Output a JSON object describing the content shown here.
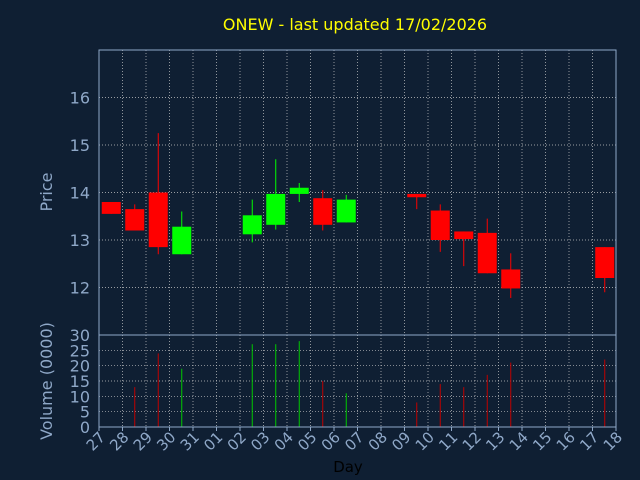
{
  "chart_data": {
    "type": "candlestick",
    "title": "ONEW - last updated 17/02/2026",
    "xlabel": "Day",
    "ylabel_price": "Price",
    "ylabel_volume": "Volume (0000)",
    "x_ticks": [
      "27",
      "28",
      "29",
      "30",
      "31",
      "01",
      "02",
      "03",
      "04",
      "05",
      "06",
      "07",
      "08",
      "09",
      "10",
      "11",
      "12",
      "13",
      "14",
      "15",
      "16",
      "17",
      "18"
    ],
    "price_yticks": [
      12,
      13,
      14,
      15,
      16
    ],
    "price_ylim": [
      11.0,
      17.0
    ],
    "volume_yticks": [
      0,
      5,
      10,
      15,
      20,
      25,
      30
    ],
    "volume_ylim": [
      0,
      30
    ],
    "grid": true,
    "colors": {
      "background": "#0f1f33",
      "title": "#ffff00",
      "axis_text": "#8fa8c8",
      "frame": "#8fa8c8",
      "grid": "#c8c8c8",
      "up": "#00ff00",
      "down": "#ff0000",
      "volume_up": "#00c800",
      "volume_down": "#c00000"
    },
    "candles": [
      {
        "day": "27",
        "open": 13.8,
        "high": 13.8,
        "low": 13.55,
        "close": 13.55,
        "volume": 0
      },
      {
        "day": "28",
        "open": 13.65,
        "high": 13.75,
        "low": 13.2,
        "close": 13.2,
        "volume": 13
      },
      {
        "day": "29",
        "open": 14.0,
        "high": 15.25,
        "low": 12.7,
        "close": 12.85,
        "volume": 24
      },
      {
        "day": "30",
        "open": 12.7,
        "high": 13.6,
        "low": 12.7,
        "close": 13.28,
        "volume": 19
      },
      {
        "day": "02",
        "open": 13.12,
        "high": 13.85,
        "low": 12.95,
        "close": 13.52,
        "volume": 27
      },
      {
        "day": "03",
        "open": 13.32,
        "high": 14.7,
        "low": 13.22,
        "close": 13.97,
        "volume": 27
      },
      {
        "day": "04",
        "open": 13.97,
        "high": 14.2,
        "low": 13.8,
        "close": 14.1,
        "volume": 28
      },
      {
        "day": "05",
        "open": 13.88,
        "high": 14.05,
        "low": 13.2,
        "close": 13.32,
        "volume": 15
      },
      {
        "day": "06",
        "open": 13.37,
        "high": 13.95,
        "low": 13.37,
        "close": 13.85,
        "volume": 11
      },
      {
        "day": "09",
        "open": 13.97,
        "high": 13.97,
        "low": 13.65,
        "close": 13.9,
        "volume": 8
      },
      {
        "day": "10",
        "open": 13.62,
        "high": 13.75,
        "low": 12.75,
        "close": 13.0,
        "volume": 14
      },
      {
        "day": "11",
        "open": 13.18,
        "high": 13.18,
        "low": 12.45,
        "close": 13.02,
        "volume": 13
      },
      {
        "day": "12",
        "open": 13.15,
        "high": 13.45,
        "low": 12.3,
        "close": 12.3,
        "volume": 17
      },
      {
        "day": "13",
        "open": 12.38,
        "high": 12.72,
        "low": 11.78,
        "close": 11.98,
        "volume": 21
      },
      {
        "day": "17",
        "open": 12.85,
        "high": 12.85,
        "low": 11.9,
        "close": 12.2,
        "volume": 22
      }
    ]
  }
}
